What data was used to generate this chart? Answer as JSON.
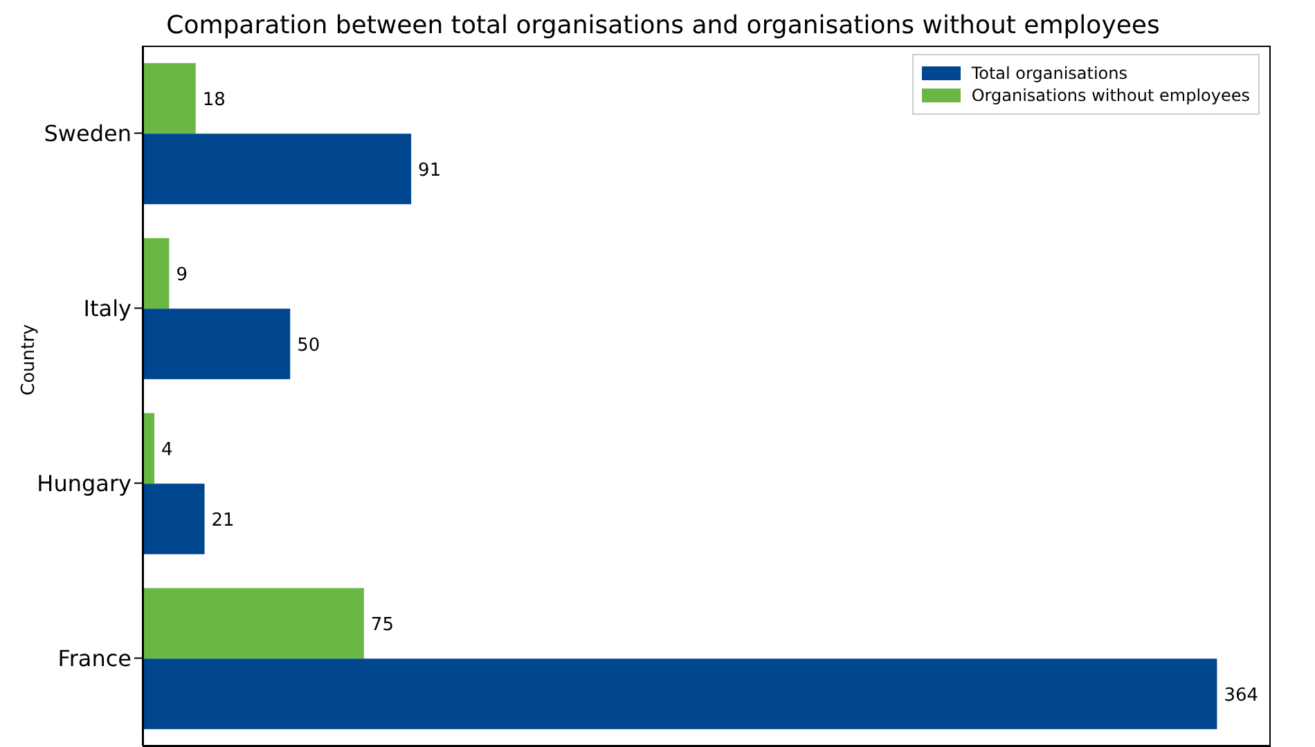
{
  "chart_data": {
    "type": "bar",
    "orientation": "horizontal",
    "title": "Comparation between total organisations and organisations without employees",
    "ylabel": "Country",
    "categories": [
      "Sweden",
      "Italy",
      "Hungary",
      "France"
    ],
    "series": [
      {
        "name": "Total organisations",
        "color": "#00468f",
        "values": [
          91,
          50,
          21,
          364
        ]
      },
      {
        "name": "Organisations without employees",
        "color": "#6ab743",
        "values": [
          18,
          9,
          4,
          75
        ]
      }
    ],
    "data_labels": true,
    "legend": "top right",
    "tick_labels": "y",
    "grid": false
  }
}
